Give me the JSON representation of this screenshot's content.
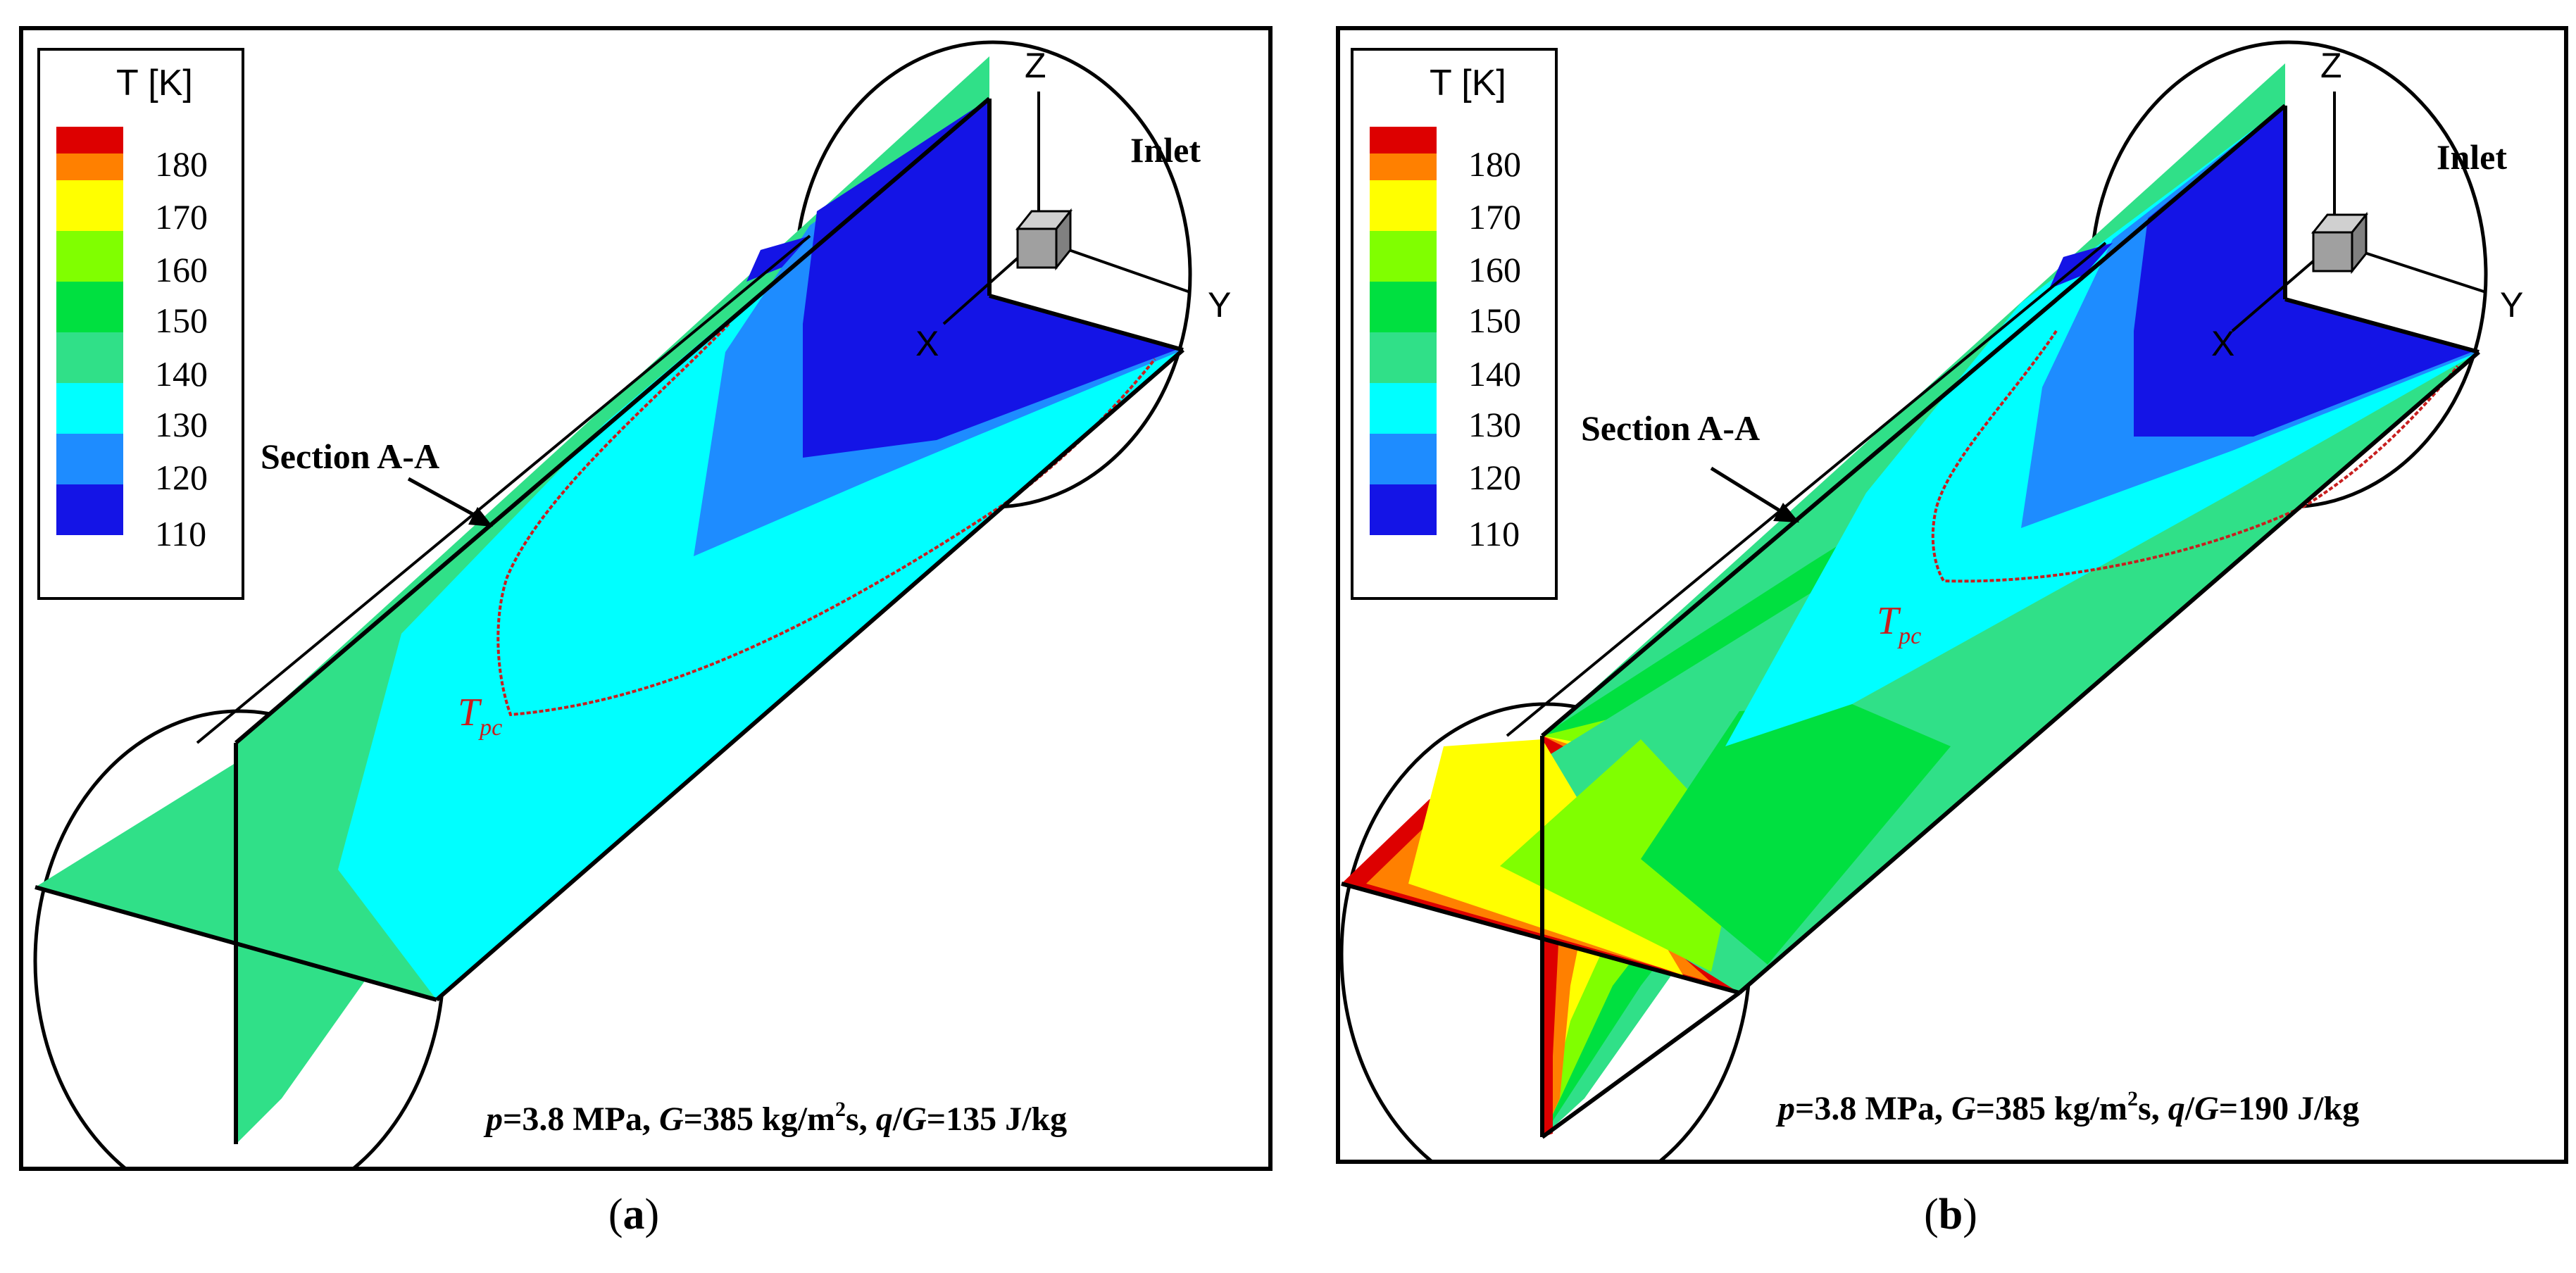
{
  "panels": [
    {
      "id": "a",
      "caption_open": "(",
      "caption_letter": "a",
      "caption_close": ")",
      "legend_title": "T [K]",
      "legend_labels": [
        "180",
        "170",
        "160",
        "150",
        "140",
        "130",
        "120",
        "110"
      ],
      "section_label": "Section A-A",
      "inlet_label": "Inlet",
      "axis_z": "Z",
      "axis_y": "Y",
      "axis_x": "X",
      "tpc_main": "T",
      "tpc_sub": "pc",
      "cond_p": "p",
      "cond_p_val": "=3.8 MPa, ",
      "cond_G": "G",
      "cond_G_val": "=385 kg/m",
      "cond_sup": "2",
      "cond_s": "s, ",
      "cond_q": "q",
      "cond_slash": "/",
      "cond_G2": "G",
      "cond_end": "=135 J/kg"
    },
    {
      "id": "b",
      "caption_open": "(",
      "caption_letter": "b",
      "caption_close": ")",
      "legend_title": "T [K]",
      "legend_labels": [
        "180",
        "170",
        "160",
        "150",
        "140",
        "130",
        "120",
        "110"
      ],
      "section_label": "Section A-A",
      "inlet_label": "Inlet",
      "axis_z": "Z",
      "axis_y": "Y",
      "axis_x": "X",
      "tpc_main": "T",
      "tpc_sub": "pc",
      "cond_p": "p",
      "cond_p_val": "=3.8 MPa, ",
      "cond_G": "G",
      "cond_G_val": "=385 kg/m",
      "cond_sup": "2",
      "cond_s": "s, ",
      "cond_q": "q",
      "cond_slash": "/",
      "cond_G2": "G",
      "cond_end": "=190 J/kg"
    }
  ],
  "colormap": [
    "#dd0000",
    "#ff8000",
    "#ffff00",
    "#80ff00",
    "#00e040",
    "#30e088",
    "#00ffff",
    "#1e8cff",
    "#1414e6"
  ],
  "tpc_color": "#c81e1e"
}
